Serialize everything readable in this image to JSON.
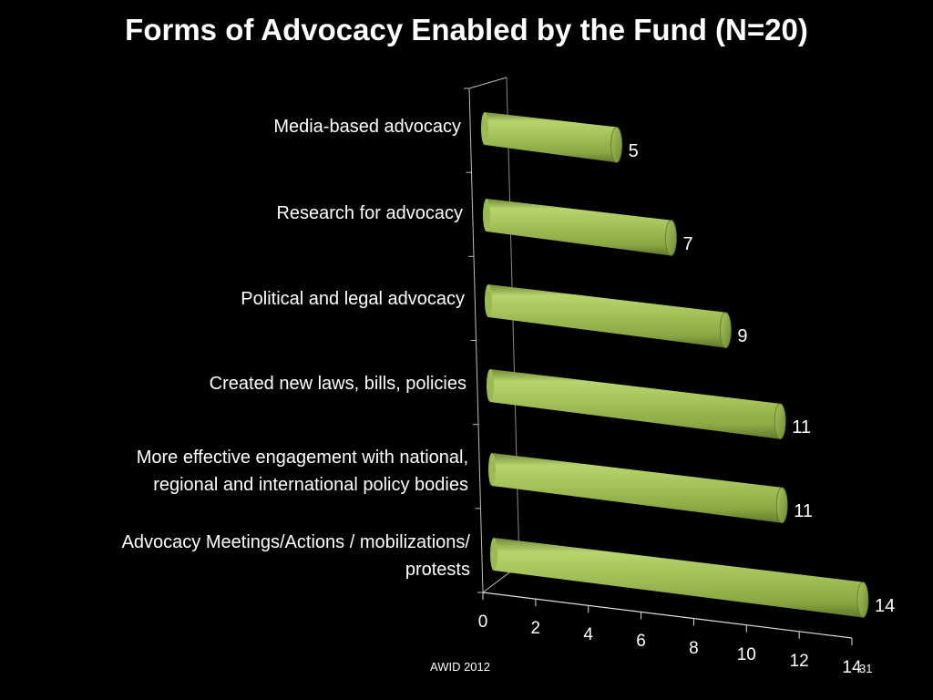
{
  "slide": {
    "source_note": "AWID 2012",
    "slide_number": "31"
  },
  "chart_data": {
    "type": "bar",
    "orientation": "horizontal",
    "style": "3d-cylinder",
    "title": "Forms of Advocacy Enabled by the Fund (N=20)",
    "categories": [
      "Media-based advocacy",
      "Research for advocacy",
      "Political and legal advocacy",
      "Created new laws, bills, policies",
      "More effective engagement with national, regional and international policy bodies",
      "Advocacy Meetings/Actions / mobilizations/ protests"
    ],
    "category_lines": [
      [
        "Media-based advocacy"
      ],
      [
        "Research for advocacy"
      ],
      [
        "Political and legal advocacy"
      ],
      [
        "Created new laws, bills, policies"
      ],
      [
        "More effective engagement with national,",
        "regional and international policy bodies"
      ],
      [
        "Advocacy Meetings/Actions / mobilizations/",
        "protests"
      ]
    ],
    "values": [
      5,
      7,
      9,
      11,
      11,
      14
    ],
    "x_ticks": [
      "0",
      "2",
      "4",
      "6",
      "8",
      "10",
      "12",
      "14"
    ],
    "xlim": [
      0,
      14
    ],
    "xlabel": "",
    "ylabel": "",
    "legend": "none",
    "grid": false,
    "bar_color": "#9ab84e"
  }
}
